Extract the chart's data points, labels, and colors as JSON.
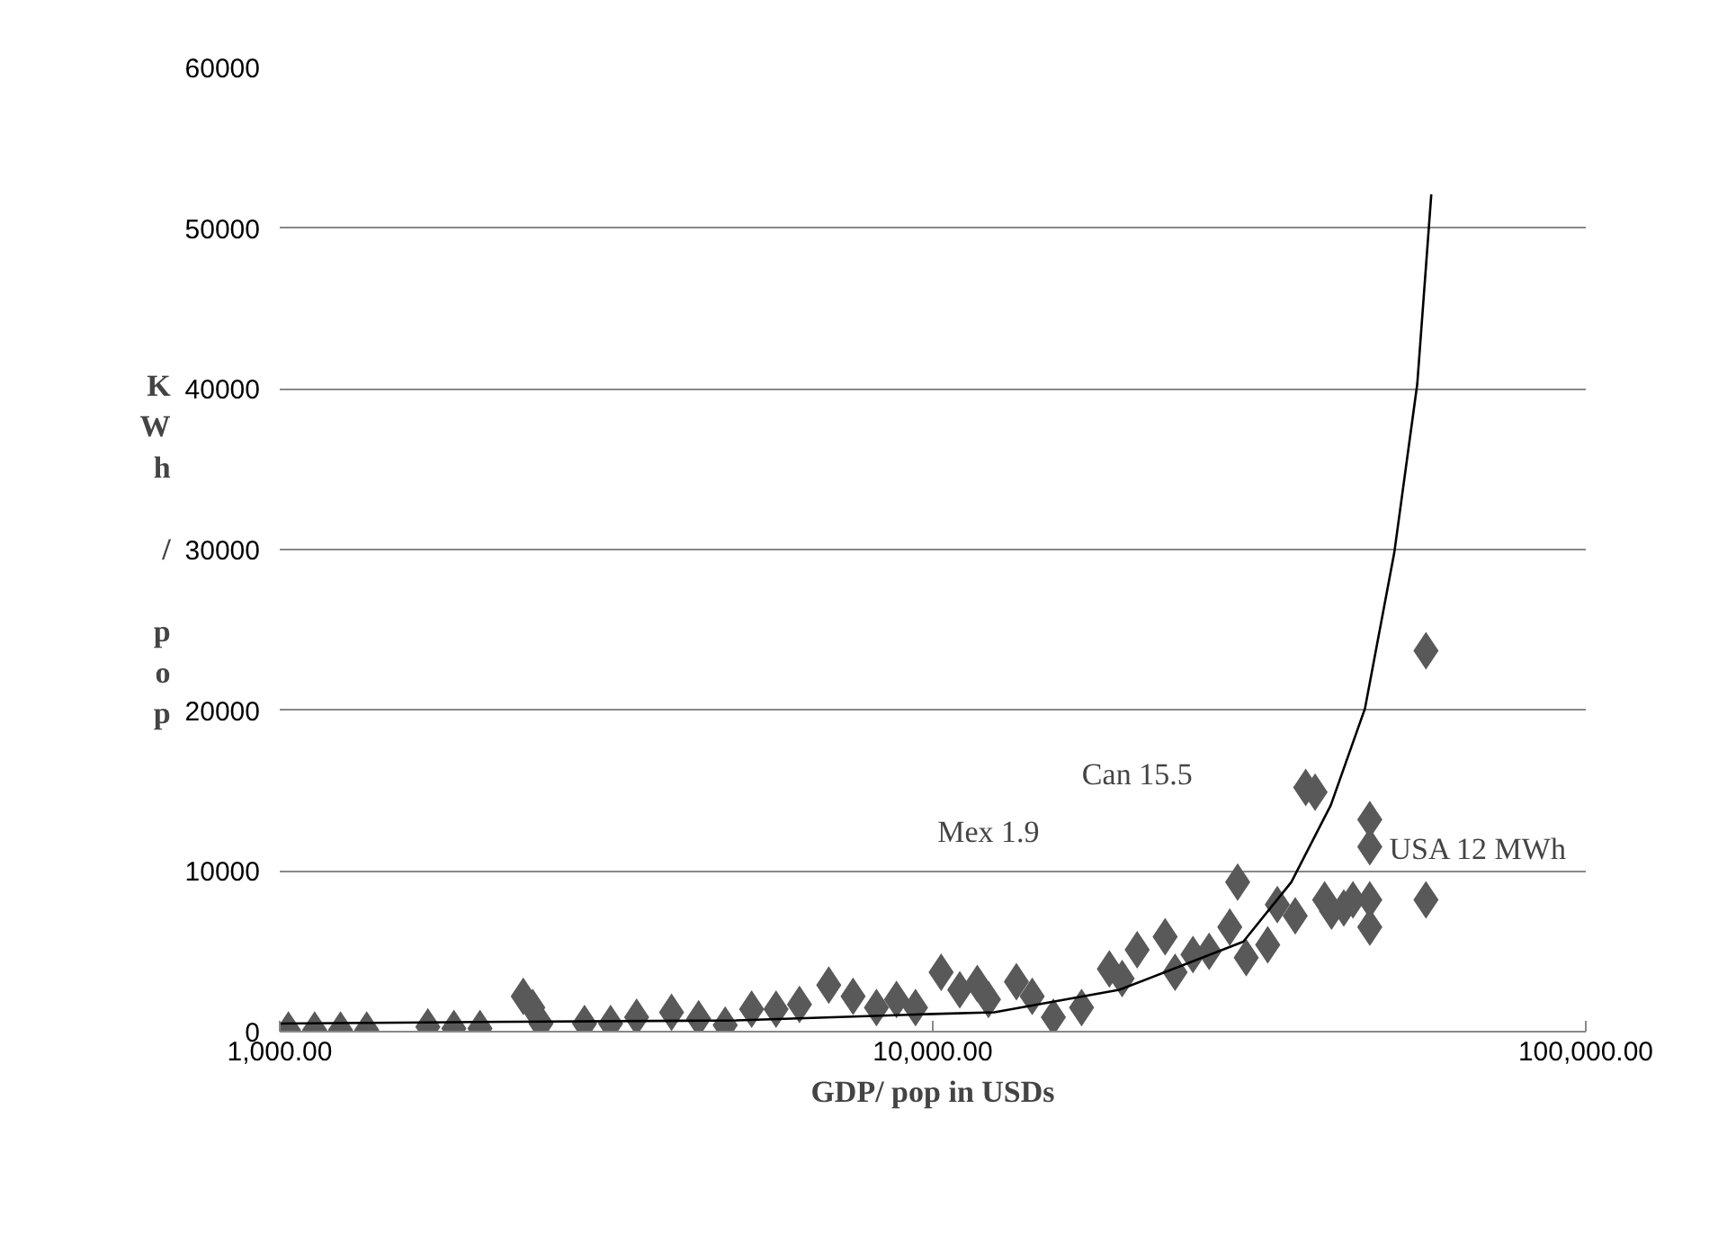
{
  "chart_data": {
    "type": "scatter",
    "xlabel": "GDP/ pop in USDs",
    "ylabel": "KWh / pop",
    "log": "x",
    "xlim": [
      1000,
      100000
    ],
    "xticks": [
      {
        "value": 1000,
        "label": "1,000.00"
      },
      {
        "value": 10000,
        "label": "10,000.00"
      },
      {
        "value": 100000,
        "label": "100,000.00"
      }
    ],
    "ylim": [
      0,
      60000
    ],
    "yticks": [
      0,
      10000,
      20000,
      30000,
      40000,
      50000,
      60000
    ],
    "grid": "y",
    "marker": "diamond",
    "series": [
      {
        "color": "#595959",
        "x": [
          1031,
          1131,
          1239,
          1359,
          1686,
          1848,
          2026,
          2360,
          2440,
          2512,
          2929,
          3211,
          3520,
          3981,
          4380,
          4810,
          5280,
          5755,
          6250,
          6930,
          7550,
          8200,
          8800,
          9410,
          10300,
          11000,
          11700,
          12170,
          13430,
          14200,
          15300,
          16900,
          18640,
          19500,
          20560,
          22690,
          23500,
          25030,
          26500,
          28500,
          29300,
          30200,
          32580,
          33700,
          35900,
          37250,
          38500,
          39820,
          40800,
          42600,
          44000,
          46690,
          46690,
          46690,
          46690,
          56920,
          56920
        ],
        "values": [
          100,
          100,
          100,
          100,
          300,
          200,
          200,
          2200,
          1500,
          500,
          500,
          500,
          900,
          1200,
          800,
          400,
          1400,
          1400,
          1700,
          2900,
          2200,
          1500,
          2000,
          1500,
          3700,
          2600,
          3000,
          2000,
          3100,
          2200,
          900,
          1500,
          3900,
          3300,
          5100,
          5900,
          3700,
          4800,
          5000,
          6500,
          9300,
          4600,
          5400,
          7900,
          7200,
          15200,
          14900,
          8200,
          7500,
          7700,
          8200,
          13200,
          11500,
          8200,
          6500,
          23700,
          8200
        ]
      },
      {
        "type": "line",
        "color": "#000000",
        "marker": "none",
        "x": [
          1000,
          2000,
          5000,
          10000,
          12420,
          19300,
          29890,
          35400,
          40700,
          45900,
          50900,
          55200,
          58000
        ],
        "values": [
          500,
          600,
          700,
          1100,
          1200,
          2600,
          5600,
          9300,
          14100,
          20100,
          29800,
          40300,
          52100
        ]
      }
    ],
    "annotations": [
      "Can 15.5",
      "Mex 1.9",
      {
        "text": "USA  12 MWh",
        "x": 56920,
        "y": 8200
      }
    ]
  }
}
